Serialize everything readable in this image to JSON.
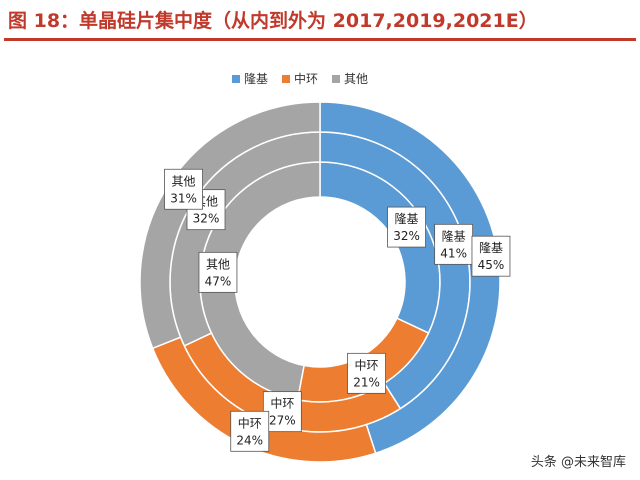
{
  "header": {
    "title": "图 18：单晶硅片集中度（从内到外为 2017,2019,2021E）"
  },
  "colors": {
    "title": "#c0392b",
    "longi": "#5b9bd5",
    "zhonghuan": "#ed7d31",
    "others": "#a5a5a5"
  },
  "chart_data": {
    "type": "pie",
    "subtype": "nested-donut",
    "categories": [
      "隆基",
      "中环",
      "其他"
    ],
    "series": [
      {
        "name": "2017",
        "values": [
          32,
          21,
          47
        ]
      },
      {
        "name": "2019",
        "values": [
          41,
          27,
          32
        ]
      },
      {
        "name": "2021E",
        "values": [
          45,
          24,
          31
        ]
      }
    ],
    "legend": {
      "position": "top",
      "entries": [
        "隆基",
        "中环",
        "其他"
      ]
    },
    "data_labels": [
      {
        "series": 0,
        "category": 0,
        "name": "隆基",
        "value": "32%"
      },
      {
        "series": 1,
        "category": 0,
        "name": "隆基",
        "value": "41%"
      },
      {
        "series": 2,
        "category": 0,
        "name": "隆基",
        "value": "45%"
      },
      {
        "series": 0,
        "category": 1,
        "name": "中环",
        "value": "21%"
      },
      {
        "series": 1,
        "category": 1,
        "name": "中环",
        "value": "27%"
      },
      {
        "series": 2,
        "category": 1,
        "name": "中环",
        "value": "24%"
      },
      {
        "series": 0,
        "category": 2,
        "name": "其他",
        "value": "47%"
      },
      {
        "series": 1,
        "category": 2,
        "name": "其他",
        "value": "32%"
      },
      {
        "series": 2,
        "category": 2,
        "name": "其他",
        "value": "31%"
      }
    ]
  },
  "watermark": "头条 @未来智库"
}
